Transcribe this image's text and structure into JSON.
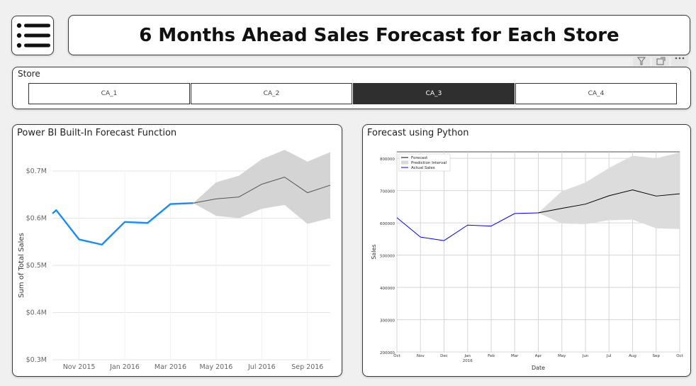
{
  "header": {
    "title": "6 Months Ahead Sales Forecast for Each Store"
  },
  "icons": {
    "menu": "hamburger-menu-icon",
    "filter": "filter-icon",
    "focus": "focus-mode-icon",
    "more": "more-options-icon"
  },
  "store_slicer": {
    "label": "Store",
    "options": [
      {
        "label": "CA_1",
        "selected": false
      },
      {
        "label": "CA_2",
        "selected": false
      },
      {
        "label": "CA_3",
        "selected": true
      },
      {
        "label": "CA_4",
        "selected": false
      }
    ]
  },
  "colors": {
    "pbi_actual": "#118dff",
    "py_actual": "#0000ff",
    "forecast": "#555555",
    "band": "#d4d4d4",
    "selected": "#2f2f2f"
  },
  "chart_data": [
    {
      "type": "line",
      "title": "Power BI Built-In Forecast Function",
      "ylabel": "Sum of Total Sales",
      "xlabel": "",
      "ylim": [
        300000,
        700000
      ],
      "y_ticks": [
        {
          "value": 300000,
          "label": "$0.3M"
        },
        {
          "value": 400000,
          "label": "$0.4M"
        },
        {
          "value": 500000,
          "label": "$0.5M"
        },
        {
          "value": 600000,
          "label": "$0.6M"
        },
        {
          "value": 700000,
          "label": "$0.7M"
        }
      ],
      "x_ticks": [
        {
          "value": "2015-11",
          "label": "Nov 2015"
        },
        {
          "value": "2016-01",
          "label": "Jan 2016"
        },
        {
          "value": "2016-03",
          "label": "Mar 2016"
        },
        {
          "value": "2016-05",
          "label": "May 2016"
        },
        {
          "value": "2016-07",
          "label": "Jul 2016"
        },
        {
          "value": "2016-09",
          "label": "Sep 2016"
        }
      ],
      "grid": true,
      "series": [
        {
          "role": "actual",
          "points": [
            [
              "2015-09-26",
              610000
            ],
            [
              "2015-10",
              617000
            ],
            [
              "2015-11",
              555000
            ],
            [
              "2015-12",
              544000
            ],
            [
              "2016-01",
              592000
            ],
            [
              "2016-02",
              590000
            ],
            [
              "2016-03",
              630000
            ],
            [
              "2016-04",
              632000
            ]
          ]
        },
        {
          "role": "forecast",
          "points": [
            [
              "2016-04",
              632000
            ],
            [
              "2016-05",
              641000
            ],
            [
              "2016-06",
              645000
            ],
            [
              "2016-07",
              672000
            ],
            [
              "2016-08",
              687000
            ],
            [
              "2016-09",
              654000
            ],
            [
              "2016-10",
              670000
            ]
          ]
        }
      ],
      "band": {
        "upper": [
          [
            "2016-04",
            632000
          ],
          [
            "2016-05",
            676000
          ],
          [
            "2016-06",
            690000
          ],
          [
            "2016-07",
            725000
          ],
          [
            "2016-08",
            745000
          ],
          [
            "2016-09",
            720000
          ],
          [
            "2016-10",
            740000
          ]
        ],
        "lower": [
          [
            "2016-04",
            632000
          ],
          [
            "2016-05",
            605000
          ],
          [
            "2016-06",
            600000
          ],
          [
            "2016-07",
            620000
          ],
          [
            "2016-08",
            628000
          ],
          [
            "2016-09",
            588000
          ],
          [
            "2016-10",
            600000
          ]
        ]
      }
    },
    {
      "type": "line",
      "title": "Forecast using Python",
      "ylabel": "Sales",
      "xlabel": "Date",
      "ylim": [
        200000,
        820000
      ],
      "y_ticks": [
        {
          "value": 200000,
          "label": "200000"
        },
        {
          "value": 300000,
          "label": "300000"
        },
        {
          "value": 400000,
          "label": "400000"
        },
        {
          "value": 500000,
          "label": "500000"
        },
        {
          "value": 600000,
          "label": "600000"
        },
        {
          "value": 700000,
          "label": "700000"
        },
        {
          "value": 800000,
          "label": "800000"
        }
      ],
      "x_ticks": [
        {
          "value": "2015-10",
          "label": "Oct"
        },
        {
          "value": "2015-11",
          "label": "Nov"
        },
        {
          "value": "2015-12",
          "label": "Dec"
        },
        {
          "value": "2016-01",
          "label": "Jan",
          "sub": "2016"
        },
        {
          "value": "2016-02",
          "label": "Feb"
        },
        {
          "value": "2016-03",
          "label": "Mar"
        },
        {
          "value": "2016-04",
          "label": "Apr"
        },
        {
          "value": "2016-05",
          "label": "May"
        },
        {
          "value": "2016-06",
          "label": "Jun"
        },
        {
          "value": "2016-07",
          "label": "Jul"
        },
        {
          "value": "2016-08",
          "label": "Aug"
        },
        {
          "value": "2016-09",
          "label": "Sep"
        },
        {
          "value": "2016-10",
          "label": "Oct"
        }
      ],
      "grid": true,
      "legend": {
        "position": "top-left",
        "entries": [
          {
            "label": "Forecast",
            "color": "#000000",
            "kind": "line"
          },
          {
            "label": "Prediction Interval",
            "color": "#d9d9d9",
            "kind": "patch"
          },
          {
            "label": "Actual Sales",
            "color": "#0000ff",
            "kind": "line"
          }
        ]
      },
      "series": [
        {
          "role": "actual",
          "points": [
            [
              "2015-10",
              616000
            ],
            [
              "2015-11",
              556000
            ],
            [
              "2015-12",
              545000
            ],
            [
              "2016-01",
              593000
            ],
            [
              "2016-02",
              590000
            ],
            [
              "2016-03",
              629000
            ],
            [
              "2016-04",
              631000
            ]
          ]
        },
        {
          "role": "forecast",
          "points": [
            [
              "2016-04",
              631000
            ],
            [
              "2016-05",
              645000
            ],
            [
              "2016-06",
              658000
            ],
            [
              "2016-07",
              684000
            ],
            [
              "2016-08",
              702000
            ],
            [
              "2016-09",
              683000
            ],
            [
              "2016-10",
              690000
            ]
          ]
        }
      ],
      "band": {
        "upper": [
          [
            "2016-04",
            631000
          ],
          [
            "2016-05",
            698000
          ],
          [
            "2016-06",
            725000
          ],
          [
            "2016-07",
            770000
          ],
          [
            "2016-08",
            808000
          ],
          [
            "2016-09",
            800000
          ],
          [
            "2016-10",
            818000
          ]
        ],
        "lower": [
          [
            "2016-04",
            631000
          ],
          [
            "2016-05",
            598000
          ],
          [
            "2016-06",
            596000
          ],
          [
            "2016-07",
            608000
          ],
          [
            "2016-08",
            610000
          ],
          [
            "2016-09",
            583000
          ],
          [
            "2016-10",
            581000
          ]
        ]
      }
    }
  ]
}
